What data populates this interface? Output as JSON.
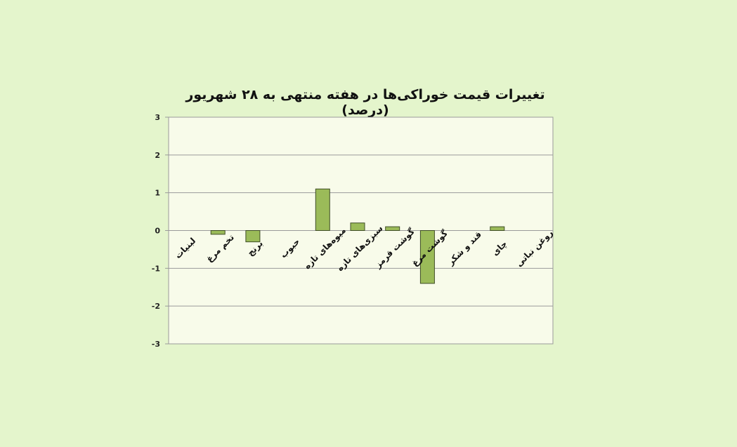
{
  "chart_data": {
    "type": "bar",
    "title": "تغییرات قیمت خوراکی‌ها در هفته منتهی به ۲۸ شهریور (درصد)",
    "categories": [
      "لبنیات",
      "تخم مرغ",
      "برنج",
      "حبوب",
      "میوه‌های تازه",
      "سبزی‌های تازه",
      "گوشت قرمز",
      "گوشت مرغ",
      "قند و شکر",
      "چای",
      "روغن نباتی"
    ],
    "values": [
      0,
      -0.1,
      -0.3,
      0,
      1.1,
      0.2,
      0.1,
      -1.4,
      0,
      0.1,
      0
    ],
    "ylim": [
      -3,
      3
    ],
    "yticks": [
      "3",
      "2",
      "1",
      "0",
      "-1",
      "-2",
      "-3"
    ],
    "grid": true,
    "legend": "none",
    "colors": {
      "bar": "#9bbb59",
      "bar_stroke": "#3f4d26",
      "plot_bg": "#f8fbea",
      "grid": "#9a9a9a",
      "page_bg": "#e4f5cc"
    }
  }
}
